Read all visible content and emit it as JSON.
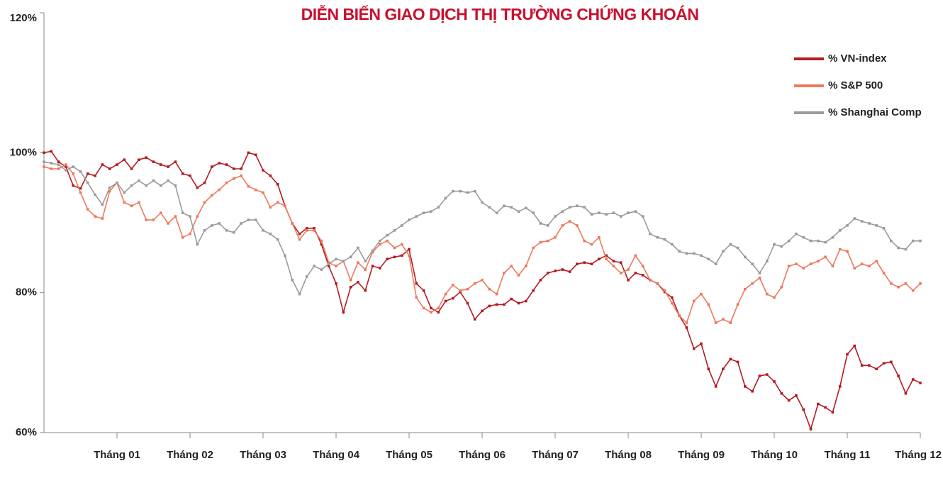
{
  "chart_data": {
    "type": "line",
    "title": "DIỄN BIẾN GIAO DỊCH THỊ TRƯỜNG CHỨNG KHOÁN",
    "categories": [
      null,
      null,
      null,
      null,
      null,
      null,
      null,
      null,
      null,
      null,
      "Tháng 01",
      null,
      null,
      null,
      null,
      null,
      null,
      null,
      null,
      null,
      "Tháng 02",
      null,
      null,
      null,
      null,
      null,
      null,
      null,
      null,
      null,
      "Tháng 03",
      null,
      null,
      null,
      null,
      null,
      null,
      null,
      null,
      null,
      "Tháng 04",
      null,
      null,
      null,
      null,
      null,
      null,
      null,
      null,
      null,
      "Tháng 05",
      null,
      null,
      null,
      null,
      null,
      null,
      null,
      null,
      null,
      "Tháng 06",
      null,
      null,
      null,
      null,
      null,
      null,
      null,
      null,
      null,
      "Tháng 07",
      null,
      null,
      null,
      null,
      null,
      null,
      null,
      null,
      null,
      "Tháng 08",
      null,
      null,
      null,
      null,
      null,
      null,
      null,
      null,
      null,
      "Tháng 09",
      null,
      null,
      null,
      null,
      null,
      null,
      null,
      null,
      null,
      "Tháng 10",
      null,
      null,
      null,
      null,
      null,
      null,
      null,
      null,
      null,
      "Tháng 11",
      null,
      null,
      null,
      null,
      null,
      null,
      null,
      null,
      null,
      "Tháng 12"
    ],
    "series": [
      {
        "name": "% VN-index",
        "color": "#b51c22",
        "values": [
          100.0,
          100.2,
          98.7,
          98.0,
          95.3,
          94.9,
          97.0,
          96.7,
          98.3,
          97.7,
          98.3,
          99.0,
          97.7,
          99.0,
          99.3,
          98.7,
          98.3,
          98.0,
          98.7,
          97.0,
          96.7,
          95.0,
          95.7,
          98.0,
          98.5,
          98.3,
          97.7,
          97.7,
          100.0,
          99.7,
          97.5,
          96.7,
          95.5,
          92.4,
          89.9,
          88.4,
          89.2,
          89.2,
          86.9,
          83.8,
          81.3,
          77.2,
          80.8,
          81.5,
          80.3,
          83.8,
          83.5,
          84.8,
          85.1,
          85.3,
          86.2,
          81.3,
          80.3,
          77.8,
          77.2,
          78.8,
          79.2,
          80.1,
          78.5,
          76.2,
          77.4,
          78.1,
          78.3,
          78.3,
          79.1,
          78.5,
          78.8,
          80.3,
          81.8,
          82.8,
          83.1,
          83.3,
          83.0,
          84.1,
          84.3,
          84.1,
          84.8,
          85.3,
          84.5,
          84.3,
          81.8,
          82.8,
          82.5,
          81.8,
          81.3,
          80.1,
          79.3,
          76.7,
          75.0,
          72.0,
          72.7,
          69.1,
          66.6,
          69.1,
          70.5,
          70.1,
          66.6,
          65.9,
          68.1,
          68.3,
          67.3,
          65.6,
          64.6,
          65.3,
          63.3,
          60.5,
          64.1,
          63.6,
          62.9,
          66.6,
          71.2,
          72.4,
          69.6,
          69.6,
          69.1,
          69.9,
          70.1,
          68.1,
          65.6,
          67.6,
          67.1
        ]
      },
      {
        "name": "% S&P 500",
        "color": "#ec7a5d",
        "values": [
          98.0,
          97.7,
          97.7,
          98.3,
          97.0,
          94.3,
          91.9,
          90.9,
          90.6,
          94.5,
          95.7,
          92.9,
          92.4,
          92.9,
          90.4,
          90.4,
          91.4,
          89.9,
          90.9,
          87.9,
          88.4,
          90.9,
          92.9,
          93.9,
          94.7,
          95.7,
          96.3,
          96.7,
          95.2,
          94.7,
          94.3,
          92.2,
          92.9,
          92.4,
          89.9,
          87.6,
          88.9,
          88.9,
          87.4,
          84.3,
          83.8,
          84.5,
          81.8,
          84.3,
          83.3,
          85.8,
          86.9,
          87.4,
          86.4,
          86.9,
          85.3,
          79.3,
          77.8,
          77.2,
          77.8,
          79.8,
          81.1,
          80.3,
          80.5,
          81.3,
          81.8,
          80.5,
          79.8,
          82.8,
          83.8,
          82.5,
          83.8,
          86.4,
          87.2,
          87.4,
          87.9,
          89.6,
          90.2,
          89.6,
          87.4,
          86.9,
          87.9,
          84.8,
          83.8,
          82.8,
          83.3,
          85.3,
          83.8,
          81.8,
          81.3,
          80.3,
          78.5,
          76.7,
          75.7,
          78.8,
          79.8,
          78.3,
          75.7,
          76.2,
          75.7,
          78.3,
          80.5,
          81.3,
          82.1,
          79.8,
          79.3,
          80.8,
          83.8,
          84.1,
          83.5,
          84.1,
          84.5,
          85.1,
          83.8,
          86.2,
          85.9,
          83.5,
          84.1,
          83.8,
          84.5,
          82.8,
          81.3,
          80.8,
          81.3,
          80.3,
          81.3
        ]
      },
      {
        "name": "% Shanghai Comp",
        "color": "#9b9b9b",
        "values": [
          98.7,
          98.5,
          98.3,
          97.5,
          98.0,
          97.3,
          95.7,
          94.0,
          92.6,
          95.0,
          95.7,
          94.3,
          95.3,
          96.0,
          95.3,
          96.0,
          95.3,
          96.0,
          95.3,
          91.4,
          90.9,
          86.9,
          88.9,
          89.6,
          89.9,
          88.9,
          88.6,
          89.9,
          90.4,
          90.4,
          88.9,
          88.4,
          87.6,
          85.3,
          81.8,
          79.8,
          82.3,
          83.8,
          83.3,
          84.1,
          84.8,
          84.5,
          85.1,
          86.4,
          84.5,
          86.0,
          87.4,
          88.2,
          88.9,
          89.6,
          90.4,
          90.9,
          91.4,
          91.6,
          92.2,
          93.5,
          94.5,
          94.5,
          94.3,
          94.5,
          92.9,
          92.2,
          91.4,
          92.4,
          92.2,
          91.6,
          92.1,
          91.4,
          89.9,
          89.6,
          90.9,
          91.6,
          92.2,
          92.4,
          92.2,
          91.2,
          91.4,
          91.2,
          91.4,
          90.9,
          91.4,
          91.6,
          90.9,
          88.4,
          87.9,
          87.6,
          86.9,
          85.9,
          85.6,
          85.6,
          85.3,
          84.8,
          84.1,
          85.9,
          86.9,
          86.4,
          85.1,
          84.1,
          82.8,
          84.5,
          86.9,
          86.6,
          87.4,
          88.4,
          87.9,
          87.4,
          87.4,
          87.2,
          87.9,
          88.9,
          89.6,
          90.6,
          90.2,
          89.9,
          89.6,
          89.2,
          87.4,
          86.4,
          86.2,
          87.4,
          87.4
        ]
      }
    ],
    "ylim": [
      60,
      120
    ],
    "yticks": [
      {
        "value": 60,
        "label": "60%"
      },
      {
        "value": 80,
        "label": "80%"
      },
      {
        "value": 100,
        "label": "100%"
      },
      {
        "value": 120,
        "label": "120%"
      }
    ],
    "legend": "top-right"
  }
}
